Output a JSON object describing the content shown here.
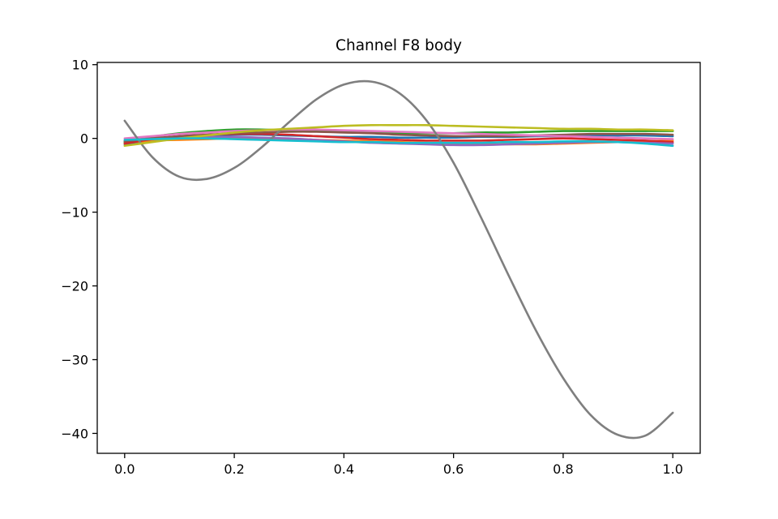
{
  "chart_data": {
    "type": "line",
    "title": "Channel F8 body",
    "xlabel": "",
    "ylabel": "",
    "xlim": [
      -0.05,
      1.05
    ],
    "ylim": [
      -42.7,
      10.3
    ],
    "xticks": [
      0.0,
      0.2,
      0.4,
      0.6,
      0.8,
      1.0
    ],
    "xtick_labels": [
      "0.0",
      "0.2",
      "0.4",
      "0.6",
      "0.8",
      "1.0"
    ],
    "yticks": [
      10,
      0,
      -10,
      -20,
      -30,
      -40
    ],
    "ytick_labels": [
      "10",
      "0",
      "−10",
      "−20",
      "−30",
      "−40"
    ],
    "grid": false,
    "legend": false,
    "x": [
      0.0,
      0.05,
      0.1,
      0.15,
      0.2,
      0.25,
      0.3,
      0.35,
      0.4,
      0.45,
      0.5,
      0.55,
      0.6,
      0.65,
      0.7,
      0.75,
      0.8,
      0.85,
      0.9,
      0.95,
      1.0
    ],
    "series": [
      {
        "color": "#1f77b4",
        "values": [
          -0.8,
          -0.2,
          0.2,
          0.4,
          0.5,
          0.5,
          0.4,
          0.3,
          0.2,
          0.2,
          0.1,
          0.1,
          0.1,
          0.2,
          0.2,
          0.3,
          0.3,
          0.4,
          0.4,
          0.4,
          0.3
        ]
      },
      {
        "color": "#ff7f0e",
        "values": [
          -0.6,
          -0.3,
          -0.2,
          -0.1,
          0.0,
          0.0,
          -0.1,
          -0.2,
          -0.3,
          -0.4,
          -0.5,
          -0.6,
          -0.7,
          -0.8,
          -0.8,
          -0.8,
          -0.7,
          -0.6,
          -0.5,
          -0.4,
          -0.3
        ]
      },
      {
        "color": "#2ca02c",
        "values": [
          -0.5,
          0.2,
          0.7,
          1.0,
          1.2,
          1.2,
          1.1,
          1.0,
          0.9,
          0.8,
          0.7,
          0.7,
          0.7,
          0.8,
          0.8,
          0.9,
          1.0,
          1.0,
          1.0,
          1.0,
          1.0
        ]
      },
      {
        "color": "#d62728",
        "values": [
          -0.7,
          -0.1,
          0.3,
          0.5,
          0.6,
          0.6,
          0.5,
          0.3,
          0.1,
          -0.1,
          -0.2,
          -0.3,
          -0.3,
          -0.3,
          -0.2,
          -0.1,
          0.0,
          -0.1,
          -0.2,
          -0.3,
          -0.5
        ]
      },
      {
        "color": "#9467bd",
        "values": [
          -0.3,
          0.0,
          0.1,
          0.2,
          0.2,
          0.1,
          0.0,
          -0.2,
          -0.4,
          -0.6,
          -0.7,
          -0.8,
          -0.9,
          -0.9,
          -0.8,
          -0.7,
          -0.6,
          -0.5,
          -0.5,
          -0.6,
          -0.7
        ]
      },
      {
        "color": "#8c564b",
        "values": [
          -0.4,
          0.0,
          0.3,
          0.5,
          0.7,
          0.8,
          0.9,
          0.9,
          0.8,
          0.7,
          0.5,
          0.4,
          0.3,
          0.3,
          0.3,
          0.4,
          0.5,
          0.6,
          0.6,
          0.6,
          0.5
        ]
      },
      {
        "color": "#e377c2",
        "values": [
          0.0,
          0.3,
          0.6,
          0.8,
          1.0,
          1.1,
          1.2,
          1.2,
          1.1,
          1.0,
          0.9,
          0.8,
          0.7,
          0.6,
          0.5,
          0.4,
          0.3,
          0.2,
          0.1,
          0.0,
          -0.1
        ]
      },
      {
        "color": "#7f7f7f",
        "values": [
          2.4,
          -2.5,
          -5.2,
          -5.5,
          -4.0,
          -1.2,
          2.2,
          5.3,
          7.3,
          7.7,
          6.2,
          2.5,
          -3.3,
          -10.7,
          -18.5,
          -26.0,
          -32.5,
          -37.5,
          -40.2,
          -40.3,
          -37.2
        ]
      },
      {
        "color": "#bcbd22",
        "values": [
          -1.0,
          -0.5,
          0.0,
          0.4,
          0.8,
          1.1,
          1.3,
          1.5,
          1.7,
          1.8,
          1.8,
          1.8,
          1.7,
          1.6,
          1.5,
          1.4,
          1.3,
          1.3,
          1.2,
          1.2,
          1.1
        ]
      },
      {
        "color": "#17becf",
        "values": [
          -0.2,
          -0.1,
          0.0,
          0.0,
          -0.1,
          -0.2,
          -0.3,
          -0.4,
          -0.5,
          -0.5,
          -0.6,
          -0.6,
          -0.6,
          -0.6,
          -0.5,
          -0.5,
          -0.4,
          -0.4,
          -0.5,
          -0.7,
          -1.0
        ]
      }
    ]
  }
}
